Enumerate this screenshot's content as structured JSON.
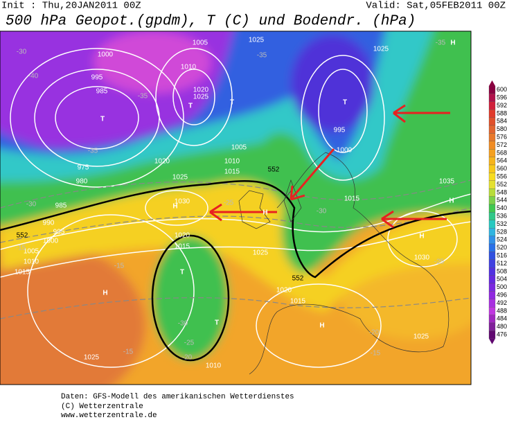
{
  "header": {
    "init": "Init : Thu,20JAN2011 00Z",
    "valid": "Valid: Sat,05FEB2011 00Z",
    "title": "500 hPa Geopot.(gpdm), T (C) und Bodendr. (hPa)"
  },
  "map_labels": [
    "H",
    "H",
    "H",
    "H",
    "H",
    "H",
    "H",
    "T",
    "T",
    "T",
    "T",
    "T",
    "T",
    "1000",
    "995",
    "985",
    "975",
    "980",
    "985",
    "990",
    "995",
    "1000",
    "1005",
    "1010",
    "1015",
    "1025",
    "1005",
    "1010",
    "1020",
    "1025",
    "1030",
    "1025",
    "1020",
    "1005",
    "1010",
    "1015",
    "1025",
    "1025",
    "995",
    "1000",
    "1015",
    "1035",
    "1030",
    "1025",
    "1015",
    "1020",
    "1025",
    "1010",
    "1020",
    "1015",
    "552",
    "552",
    "552",
    "-30",
    "-40",
    "-35",
    "-35",
    "-30",
    "-25",
    "-30",
    "-15",
    "-15",
    "-15",
    "-20",
    "-25",
    "-30",
    "-20",
    "-15",
    "-25",
    "-35",
    "-35"
  ],
  "colorbar": {
    "levels": [
      600,
      596,
      592,
      588,
      584,
      580,
      576,
      572,
      568,
      564,
      560,
      556,
      552,
      548,
      544,
      540,
      536,
      532,
      528,
      524,
      520,
      516,
      512,
      508,
      504,
      500,
      496,
      492,
      488,
      484,
      480,
      476
    ],
    "colors": [
      "#8a0040",
      "#b0104a",
      "#d0203a",
      "#e03a2a",
      "#e0502a",
      "#e2642e",
      "#e8782a",
      "#f08c24",
      "#f4a020",
      "#f6b41c",
      "#f8c81a",
      "#f8dc20",
      "#e4e030",
      "#b8dc3a",
      "#7cd04a",
      "#40c850",
      "#30c888",
      "#28c8c0",
      "#30b4e0",
      "#3090e8",
      "#2870e8",
      "#3050e0",
      "#4040e0",
      "#5030e0",
      "#6428e0",
      "#7a28e0",
      "#9028e0",
      "#a830e0",
      "#c038e0",
      "#a028c0",
      "#80209a",
      "#600870"
    ]
  },
  "footer": {
    "lines": [
      "Daten: GFS-Modell des amerikanischen Wetterdienstes",
      "(C) Wetterzentrale",
      "www.wetterzentrale.de"
    ]
  }
}
